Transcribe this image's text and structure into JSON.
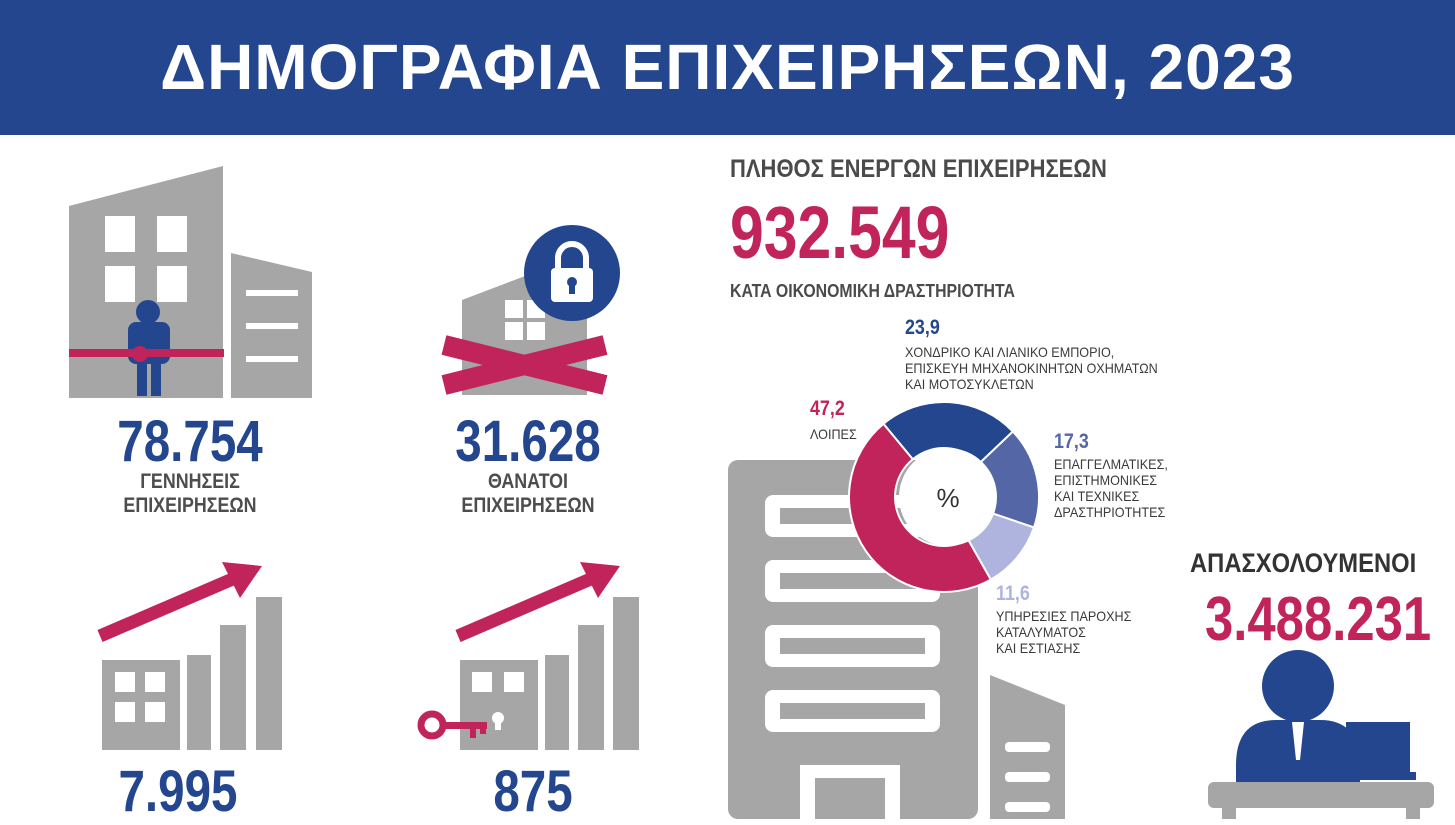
{
  "header": {
    "title": "ΔΗΜΟΓΡΑΦΙΑ ΕΠΙΧΕΙΡΗΣΕΩΝ, 2023"
  },
  "stats": {
    "births": {
      "value": "78.754",
      "caption_line1": "ΓΕΝΝΗΣΕΙΣ",
      "caption_line2": "ΕΠΙΧΕΙΡΗΣΕΩΝ"
    },
    "deaths": {
      "value": "31.628",
      "caption_line1": "ΘΑΝΑΤΟΙ",
      "caption_line2": "ΕΠΙΧΕΙΡΗΣΕΩΝ"
    },
    "growth_a": {
      "value": "7.995"
    },
    "growth_b": {
      "value": "875"
    }
  },
  "active": {
    "heading": "ΠΛΗΘΟΣ ΕΝΕΡΓΩΝ ΕΠΙΧΕΙΡΗΣΕΩΝ",
    "value": "932.549",
    "subheading": "ΚΑΤΑ ΟΙΚΟΝΟΜΙΚΗ ΔΡΑΣΤΗΡΙΟΤΗΤΑ"
  },
  "employed": {
    "heading": "ΑΠΑΣΧΟΛΟΥΜΕΝΟΙ",
    "value": "3.488.231"
  },
  "chart_data": {
    "type": "pie",
    "center_label": "%",
    "slices": [
      {
        "value": "23,9",
        "numeric": 23.9,
        "label_lines": [
          "ΧΟΝΔΡΙΚΟ ΚΑΙ ΛΙΑΝΙΚΟ ΕΜΠΟΡΙΟ,",
          "ΕΠΙΣΚΕΥΗ ΜΗΧΑΝΟΚΙΝΗΤΩΝ ΟΧΗΜΑΤΩΝ",
          "ΚΑΙ ΜΟΤΟΣΥΚΛΕΤΩΝ"
        ],
        "color": "#23468f"
      },
      {
        "value": "17,3",
        "numeric": 17.3,
        "label_lines": [
          "ΕΠΑΓΓΕΛΜΑΤΙΚΕΣ,",
          "ΕΠΙΣΤΗΜΟΝΙΚΕΣ",
          "ΚΑΙ ΤΕΧΝΙΚΕΣ",
          "ΔΡΑΣΤΗΡΙΟΤΗΤΕΣ"
        ],
        "color": "#5566a6"
      },
      {
        "value": "11,6",
        "numeric": 11.6,
        "label_lines": [
          "ΥΠΗΡΕΣΙΕΣ ΠΑΡΟΧΗΣ",
          "ΚΑΤΑΛΥΜΑΤΟΣ",
          "ΚΑΙ ΕΣΤΙΑΣΗΣ"
        ],
        "color": "#aeb4de"
      },
      {
        "value": "47,2",
        "numeric": 47.2,
        "label_lines": [
          "ΛΟΙΠΕΣ"
        ],
        "color": "#c0245a"
      }
    ]
  }
}
